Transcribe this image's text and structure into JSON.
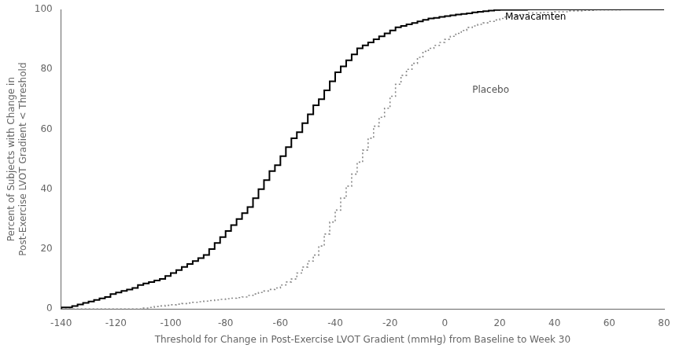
{
  "chart_data": {
    "type": "step",
    "title": "",
    "xlabel": "Threshold for Change in Post-Exercise LVOT Gradient (mmHg) from Baseline to Week 30",
    "ylabel": "Percent of Subjects with Change in\nPost-Exercise LVOT Gradient < Threshold",
    "xlim": [
      -140,
      80
    ],
    "ylim": [
      0,
      100
    ],
    "xticks": [
      -140,
      -120,
      -100,
      -80,
      -60,
      -40,
      -20,
      0,
      20,
      40,
      60,
      80
    ],
    "yticks": [
      0,
      20,
      40,
      60,
      80,
      100
    ],
    "grid": false,
    "annotations": [
      {
        "text": "Mavacamten",
        "x": 22,
        "y": 97.5,
        "color": "#000000"
      },
      {
        "text": "Placebo",
        "x": 10,
        "y": 73,
        "color": "#555555"
      }
    ],
    "series": [
      {
        "name": "Mavacamten",
        "color": "#000000",
        "line_style": "solid",
        "x": [
          -140,
          -136,
          -134,
          -132,
          -130,
          -128,
          -126,
          -124,
          -122,
          -120,
          -118,
          -116,
          -114,
          -112,
          -110,
          -108,
          -106,
          -104,
          -102,
          -100,
          -98,
          -96,
          -94,
          -92,
          -90,
          -88,
          -86,
          -84,
          -82,
          -80,
          -78,
          -76,
          -74,
          -72,
          -70,
          -68,
          -66,
          -64,
          -62,
          -60,
          -58,
          -56,
          -54,
          -52,
          -50,
          -48,
          -46,
          -44,
          -42,
          -40,
          -38,
          -36,
          -34,
          -32,
          -30,
          -28,
          -26,
          -24,
          -22,
          -20,
          -18,
          -16,
          -14,
          -12,
          -10,
          -8,
          -6,
          -4,
          -2,
          0,
          2,
          4,
          6,
          8,
          10,
          12,
          14,
          16,
          18,
          20,
          25,
          30,
          40,
          50,
          60,
          70,
          80
        ],
        "values": [
          0,
          0.5,
          1,
          1.5,
          2,
          2.5,
          3,
          3.5,
          4,
          5,
          5.5,
          6,
          6.5,
          7,
          8,
          8.5,
          9,
          9.5,
          10,
          11,
          12,
          13,
          14,
          15,
          16,
          17,
          18,
          20,
          22,
          24,
          26,
          28,
          30,
          32,
          34,
          37,
          40,
          43,
          46,
          48,
          51,
          54,
          57,
          59,
          62,
          65,
          68,
          70,
          73,
          76,
          79,
          81,
          83,
          85,
          87,
          88,
          89,
          90,
          91,
          92,
          93,
          94,
          94.5,
          95,
          95.5,
          96,
          96.5,
          97,
          97.2,
          97.5,
          97.8,
          98,
          98.3,
          98.5,
          98.7,
          99,
          99.2,
          99.4,
          99.6,
          99.8,
          99.9,
          99.9,
          100,
          100,
          100,
          100,
          100
        ]
      },
      {
        "name": "Placebo",
        "color": "#888888",
        "line_style": "dotted",
        "x": [
          -140,
          -130,
          -120,
          -115,
          -110,
          -108,
          -106,
          -104,
          -102,
          -100,
          -98,
          -96,
          -94,
          -92,
          -90,
          -88,
          -86,
          -84,
          -82,
          -80,
          -78,
          -76,
          -74,
          -72,
          -70,
          -68,
          -66,
          -64,
          -62,
          -60,
          -58,
          -56,
          -54,
          -52,
          -50,
          -48,
          -46,
          -44,
          -42,
          -40,
          -38,
          -36,
          -34,
          -32,
          -30,
          -28,
          -26,
          -24,
          -22,
          -20,
          -18,
          -16,
          -14,
          -12,
          -10,
          -8,
          -6,
          -4,
          -2,
          0,
          2,
          4,
          6,
          8,
          10,
          12,
          14,
          16,
          18,
          20,
          22,
          24,
          26,
          28,
          30,
          35,
          40,
          45,
          50,
          55,
          60,
          65,
          70,
          75,
          80
        ],
        "values": [
          0,
          0,
          0,
          0,
          0,
          0.3,
          0.5,
          0.8,
          1,
          1.2,
          1.4,
          1.6,
          1.8,
          2,
          2.2,
          2.4,
          2.6,
          2.8,
          3,
          3.2,
          3.4,
          3.6,
          3.8,
          4,
          4.5,
          5,
          5.5,
          6,
          6.5,
          7,
          8,
          9,
          10,
          12,
          14,
          16,
          18,
          21,
          25,
          29,
          33,
          37,
          41,
          45,
          49,
          53,
          57,
          61,
          64,
          67,
          71,
          75,
          78,
          80,
          82,
          84,
          86,
          87,
          88,
          89,
          90,
          91,
          92,
          93,
          94,
          94.5,
          95,
          95.5,
          96,
          96.5,
          97,
          97.5,
          97.8,
          98,
          98.3,
          98.8,
          99,
          99.2,
          99.5,
          99.7,
          99.85,
          99.9,
          99.95,
          100,
          100
        ]
      }
    ]
  }
}
